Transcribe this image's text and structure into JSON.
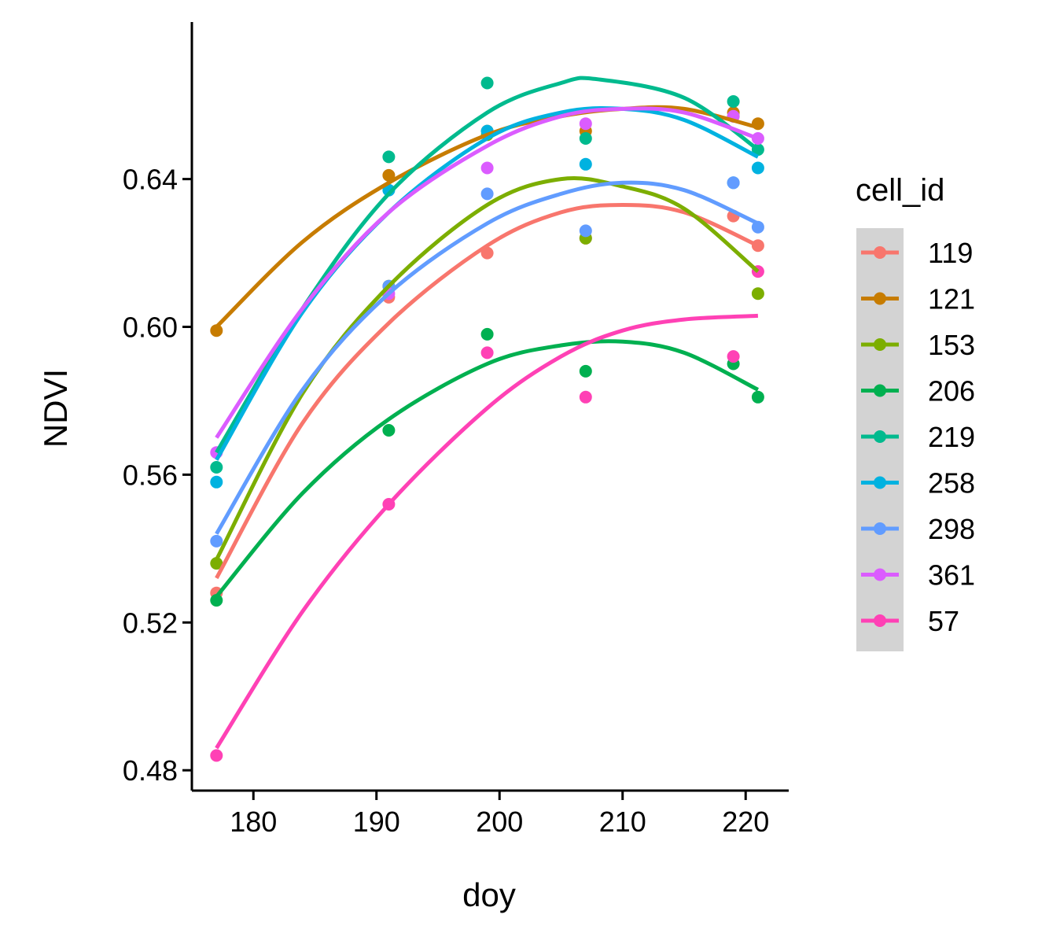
{
  "chart_data": {
    "type": "scatter",
    "xlabel": "doy",
    "ylabel": "NDVI",
    "xlim": [
      175,
      223.5
    ],
    "ylim": [
      0.4745,
      0.6825
    ],
    "xticks": [
      180,
      190,
      200,
      210,
      220
    ],
    "yticks": [
      0.48,
      0.52,
      0.56,
      0.6,
      0.64
    ],
    "ytick_labels": [
      "0.48",
      "0.52",
      "0.56",
      "0.60",
      "0.64"
    ],
    "legend": {
      "title": "cell_id",
      "position": "right"
    },
    "grid": false,
    "trend": "quadratic smooth per series",
    "series": [
      {
        "name": "119",
        "color": "#F8766D",
        "points": [
          [
            177,
            0.528
          ],
          [
            191,
            0.608
          ],
          [
            199,
            0.62
          ],
          [
            207,
            0.624
          ],
          [
            219,
            0.63
          ],
          [
            221,
            0.622
          ]
        ]
      },
      {
        "name": "121",
        "color": "#C77C00",
        "points": [
          [
            177,
            0.599
          ],
          [
            191,
            0.641
          ],
          [
            199,
            0.653
          ],
          [
            207,
            0.653
          ],
          [
            219,
            0.658
          ],
          [
            221,
            0.655
          ]
        ]
      },
      {
        "name": "153",
        "color": "#7CAE00",
        "points": [
          [
            177,
            0.536
          ],
          [
            191,
            0.611
          ],
          [
            199,
            0.652
          ],
          [
            207,
            0.624
          ],
          [
            219,
            0.657
          ],
          [
            221,
            0.609
          ]
        ]
      },
      {
        "name": "206",
        "color": "#00B050",
        "points": [
          [
            177,
            0.526
          ],
          [
            191,
            0.572
          ],
          [
            199,
            0.598
          ],
          [
            207,
            0.588
          ],
          [
            219,
            0.59
          ],
          [
            221,
            0.581
          ]
        ]
      },
      {
        "name": "219",
        "color": "#00BA8E",
        "points": [
          [
            177,
            0.562
          ],
          [
            191,
            0.646
          ],
          [
            199,
            0.666
          ],
          [
            207,
            0.651
          ],
          [
            219,
            0.661
          ],
          [
            221,
            0.648
          ]
        ]
      },
      {
        "name": "258",
        "color": "#00B2E0",
        "points": [
          [
            177,
            0.558
          ],
          [
            191,
            0.637
          ],
          [
            199,
            0.653
          ],
          [
            207,
            0.644
          ],
          [
            219,
            0.639
          ],
          [
            221,
            0.643
          ]
        ]
      },
      {
        "name": "298",
        "color": "#619CFF",
        "points": [
          [
            177,
            0.542
          ],
          [
            191,
            0.611
          ],
          [
            199,
            0.636
          ],
          [
            207,
            0.626
          ],
          [
            219,
            0.639
          ],
          [
            221,
            0.627
          ]
        ]
      },
      {
        "name": "361",
        "color": "#DB5CFF",
        "points": [
          [
            177,
            0.566
          ],
          [
            191,
            0.609
          ],
          [
            199,
            0.643
          ],
          [
            207,
            0.655
          ],
          [
            219,
            0.657
          ],
          [
            221,
            0.651
          ]
        ]
      },
      {
        "name": "57",
        "color": "#FF41B5",
        "points": [
          [
            177,
            0.484
          ],
          [
            191,
            0.552
          ],
          [
            199,
            0.593
          ],
          [
            207,
            0.581
          ],
          [
            219,
            0.592
          ],
          [
            221,
            0.615
          ]
        ]
      }
    ],
    "fits": [
      {
        "name": "119",
        "color": "#F8766D",
        "points": [
          [
            177,
            0.532
          ],
          [
            184,
            0.574
          ],
          [
            191,
            0.601
          ],
          [
            199,
            0.622
          ],
          [
            205,
            0.631
          ],
          [
            210,
            0.633
          ],
          [
            215,
            0.631
          ],
          [
            221,
            0.622
          ]
        ]
      },
      {
        "name": "121",
        "color": "#C77C00",
        "points": [
          [
            177,
            0.6
          ],
          [
            184,
            0.623
          ],
          [
            191,
            0.639
          ],
          [
            199,
            0.652
          ],
          [
            205,
            0.657
          ],
          [
            210,
            0.659
          ],
          [
            215,
            0.659
          ],
          [
            221,
            0.654
          ]
        ]
      },
      {
        "name": "153",
        "color": "#7CAE00",
        "points": [
          [
            177,
            0.537
          ],
          [
            184,
            0.582
          ],
          [
            191,
            0.611
          ],
          [
            199,
            0.633
          ],
          [
            205,
            0.64
          ],
          [
            210,
            0.638
          ],
          [
            215,
            0.632
          ],
          [
            221,
            0.615
          ]
        ]
      },
      {
        "name": "206",
        "color": "#00B050",
        "points": [
          [
            177,
            0.527
          ],
          [
            184,
            0.555
          ],
          [
            191,
            0.575
          ],
          [
            199,
            0.59
          ],
          [
            205,
            0.595
          ],
          [
            210,
            0.596
          ],
          [
            215,
            0.593
          ],
          [
            221,
            0.583
          ]
        ]
      },
      {
        "name": "219",
        "color": "#00BA8E",
        "points": [
          [
            177,
            0.566
          ],
          [
            184,
            0.605
          ],
          [
            191,
            0.636
          ],
          [
            199,
            0.658
          ],
          [
            205,
            0.666
          ],
          [
            208,
            0.667
          ],
          [
            215,
            0.662
          ],
          [
            221,
            0.648
          ]
        ]
      },
      {
        "name": "258",
        "color": "#00B2E0",
        "points": [
          [
            177,
            0.564
          ],
          [
            184,
            0.604
          ],
          [
            191,
            0.631
          ],
          [
            199,
            0.651
          ],
          [
            205,
            0.658
          ],
          [
            210,
            0.659
          ],
          [
            215,
            0.656
          ],
          [
            221,
            0.646
          ]
        ]
      },
      {
        "name": "298",
        "color": "#619CFF",
        "points": [
          [
            177,
            0.544
          ],
          [
            184,
            0.583
          ],
          [
            191,
            0.609
          ],
          [
            199,
            0.628
          ],
          [
            205,
            0.636
          ],
          [
            210,
            0.639
          ],
          [
            215,
            0.637
          ],
          [
            221,
            0.628
          ]
        ]
      },
      {
        "name": "361",
        "color": "#DB5CFF",
        "points": [
          [
            177,
            0.57
          ],
          [
            184,
            0.605
          ],
          [
            191,
            0.631
          ],
          [
            199,
            0.649
          ],
          [
            205,
            0.657
          ],
          [
            210,
            0.659
          ],
          [
            215,
            0.658
          ],
          [
            221,
            0.651
          ]
        ]
      },
      {
        "name": "57",
        "color": "#FF41B5",
        "points": [
          [
            177,
            0.486
          ],
          [
            184,
            0.523
          ],
          [
            191,
            0.552
          ],
          [
            199,
            0.578
          ],
          [
            205,
            0.592
          ],
          [
            210,
            0.599
          ],
          [
            215,
            0.602
          ],
          [
            221,
            0.603
          ]
        ]
      }
    ]
  }
}
